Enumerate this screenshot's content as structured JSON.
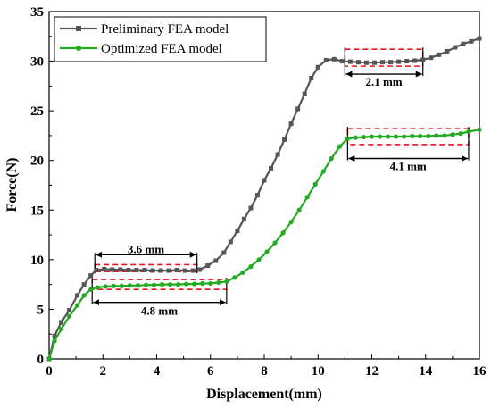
{
  "chart_data": {
    "type": "line",
    "xlabel": "Displacement(mm)",
    "ylabel": "Force(N)",
    "xlim": [
      0,
      16
    ],
    "ylim": [
      0,
      35
    ],
    "xticks": [
      "0",
      "2",
      "4",
      "6",
      "8",
      "10",
      "12",
      "14",
      "16"
    ],
    "yticks": [
      "0",
      "5",
      "10",
      "15",
      "20",
      "25",
      "30",
      "35"
    ],
    "grid": false,
    "legend_position": "top-left",
    "colors": {
      "preliminary": "#555555",
      "optimized": "#22aa22",
      "annotation_box": "#e8141e",
      "arrow": "#000000"
    },
    "series": [
      {
        "name": "Preliminary FEA model",
        "marker": "square",
        "x": [
          0,
          0.2,
          0.45,
          0.75,
          1.05,
          1.3,
          1.55,
          1.75,
          2.05,
          2.35,
          2.65,
          2.95,
          3.25,
          3.55,
          3.85,
          4.15,
          4.45,
          4.75,
          5.05,
          5.35,
          5.6,
          5.9,
          6.2,
          6.5,
          6.75,
          7.0,
          7.25,
          7.5,
          7.75,
          8.0,
          8.25,
          8.5,
          8.75,
          9.0,
          9.25,
          9.5,
          9.75,
          10.0,
          10.3,
          10.6,
          10.9,
          11.2,
          11.5,
          11.8,
          12.1,
          12.4,
          12.7,
          13.0,
          13.3,
          13.6,
          13.9,
          14.2,
          14.5,
          14.8,
          15.1,
          15.4,
          15.7,
          16.0
        ],
        "y": [
          0,
          2.3,
          3.7,
          4.9,
          6.4,
          7.5,
          8.4,
          8.95,
          9.05,
          9.0,
          9.0,
          8.95,
          8.95,
          8.95,
          8.9,
          8.9,
          8.9,
          8.95,
          8.9,
          8.9,
          9.0,
          9.4,
          9.9,
          10.7,
          11.8,
          12.9,
          14.1,
          15.2,
          16.5,
          18.0,
          19.2,
          20.6,
          22.1,
          23.7,
          25.2,
          26.7,
          28.3,
          29.4,
          30.1,
          30.2,
          30.0,
          29.95,
          29.9,
          29.85,
          29.85,
          29.9,
          29.9,
          29.95,
          30.0,
          30.05,
          30.15,
          30.35,
          30.65,
          31.0,
          31.4,
          31.75,
          32.0,
          32.3
        ]
      },
      {
        "name": "Optimized FEA model",
        "marker": "circle",
        "x": [
          0,
          0.2,
          0.45,
          0.75,
          1.05,
          1.3,
          1.55,
          1.8,
          2.1,
          2.4,
          2.7,
          3.0,
          3.3,
          3.6,
          3.9,
          4.2,
          4.5,
          4.8,
          5.1,
          5.4,
          5.7,
          6.0,
          6.3,
          6.6,
          6.9,
          7.2,
          7.5,
          7.8,
          8.1,
          8.4,
          8.7,
          9.0,
          9.3,
          9.6,
          9.9,
          10.2,
          10.5,
          10.8,
          11.1,
          11.4,
          11.7,
          12.0,
          12.3,
          12.6,
          12.9,
          13.2,
          13.5,
          13.8,
          14.1,
          14.4,
          14.7,
          15.0,
          15.3,
          15.6,
          16.0
        ],
        "y": [
          0,
          1.8,
          3.0,
          4.3,
          5.4,
          6.4,
          7.0,
          7.2,
          7.3,
          7.35,
          7.35,
          7.4,
          7.4,
          7.45,
          7.45,
          7.5,
          7.5,
          7.5,
          7.55,
          7.55,
          7.6,
          7.6,
          7.7,
          7.8,
          8.2,
          8.7,
          9.3,
          10.0,
          10.8,
          11.7,
          12.7,
          13.8,
          15.0,
          16.3,
          17.6,
          18.9,
          20.2,
          21.4,
          22.2,
          22.3,
          22.35,
          22.4,
          22.4,
          22.4,
          22.4,
          22.4,
          22.45,
          22.45,
          22.45,
          22.5,
          22.5,
          22.6,
          22.7,
          22.9,
          23.1
        ]
      }
    ],
    "annotations": [
      {
        "label": "3.6 mm",
        "x_start": 1.7,
        "x_end": 5.5,
        "box_y": [
          8.8,
          9.5
        ],
        "arrow_y": 10.5,
        "text_y": 11.0
      },
      {
        "label": "4.8 mm",
        "x_start": 1.6,
        "x_end": 6.6,
        "box_y": [
          7.0,
          8.0
        ],
        "arrow_y": 5.7,
        "text_y": 4.8
      },
      {
        "label": "2.1 mm",
        "x_start": 11.0,
        "x_end": 13.9,
        "box_y": [
          29.5,
          31.2
        ],
        "arrow_y": 28.7,
        "text_y": 27.9
      },
      {
        "label": "4.1 mm",
        "x_start": 11.1,
        "x_end": 15.6,
        "box_y": [
          21.6,
          23.2
        ],
        "arrow_y": 20.2,
        "text_y": 19.4
      }
    ]
  }
}
